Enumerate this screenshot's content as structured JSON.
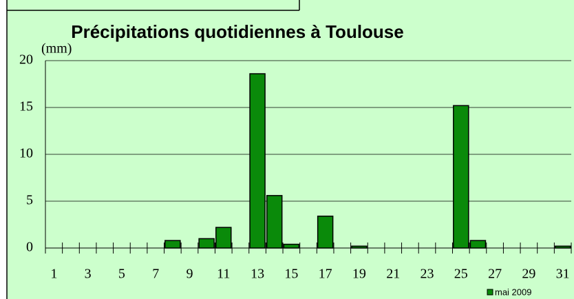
{
  "chart_data": {
    "type": "bar",
    "title": "Précipitations quotidiennes à Toulouse",
    "y_label": "(mm)",
    "categories": [
      "1",
      null,
      "3",
      null,
      "5",
      null,
      "7",
      null,
      "9",
      null,
      "11",
      null,
      "13",
      null,
      "15",
      null,
      "17",
      null,
      "19",
      null,
      "21",
      null,
      "23",
      null,
      "25",
      null,
      "27",
      null,
      "29",
      null,
      "31"
    ],
    "series": [
      {
        "name": "mai 2009",
        "color": "#0a8a0a",
        "values": [
          0,
          0,
          0,
          0,
          0,
          0,
          0,
          0.8,
          0,
          1.0,
          2.2,
          0,
          18.6,
          5.6,
          0.4,
          0,
          3.4,
          0,
          0.2,
          0,
          0,
          0,
          0,
          0,
          15.2,
          0.8,
          0,
          0,
          0,
          0,
          0.2
        ]
      }
    ],
    "ylim": [
      0,
      20
    ],
    "yticks": [
      0,
      5,
      10,
      15,
      20
    ],
    "grid": true,
    "legend": "bottom-right"
  }
}
